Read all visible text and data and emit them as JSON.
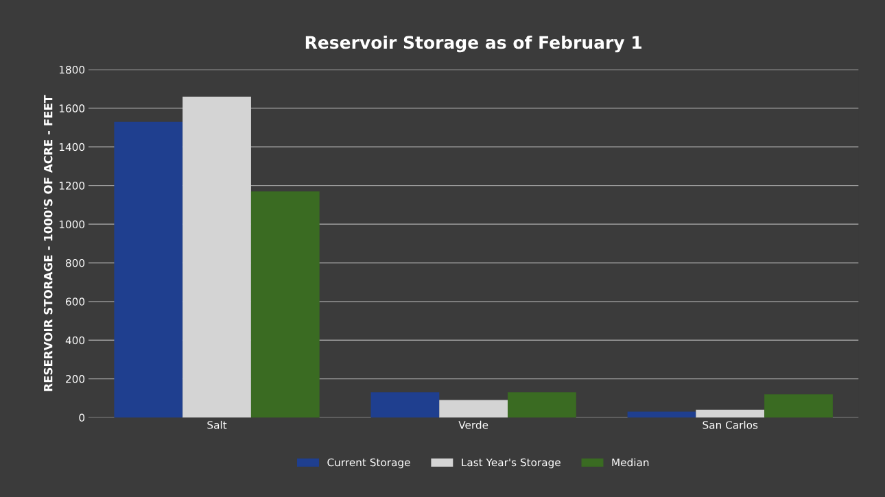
{
  "chart_data": {
    "type": "bar",
    "title": "Reservoir Storage as of February 1",
    "ylabel": "RESERVOIR STORAGE - 1000'S OF ACRE - FEET",
    "categories": [
      "Salt",
      "Verde",
      "San Carlos"
    ],
    "series": [
      {
        "name": "Current Storage",
        "color": "#1f3f8f",
        "values": [
          1530,
          130,
          30
        ]
      },
      {
        "name": "Last Year's Storage",
        "color": "#d4d4d4",
        "values": [
          1660,
          90,
          40
        ]
      },
      {
        "name": "Median",
        "color": "#3a6b22",
        "values": [
          1170,
          130,
          120
        ]
      }
    ],
    "ylim": [
      0,
      1800
    ],
    "yticks": [
      0,
      200,
      400,
      600,
      800,
      1000,
      1200,
      1400,
      1600,
      1800
    ],
    "grid": "y",
    "legend": "bottom"
  }
}
